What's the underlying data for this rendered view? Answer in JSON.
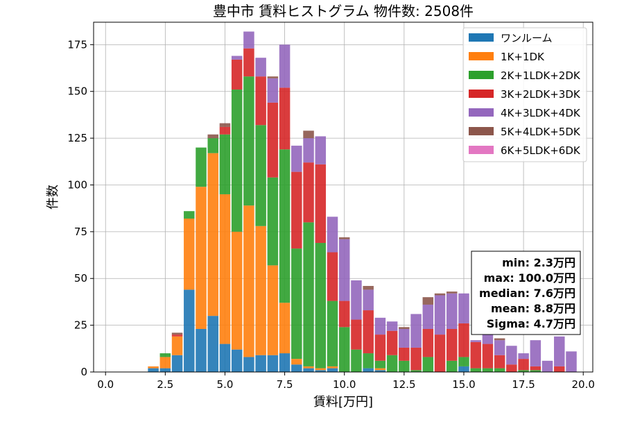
{
  "chart_data": {
    "type": "bar",
    "stacked": true,
    "title": "豊中市 賃料ヒストグラム  物件数: 2508件",
    "xlabel": "賃料[万円]",
    "ylabel": "件数",
    "xlim": [
      -0.5,
      20.4
    ],
    "ylim": [
      0,
      187
    ],
    "xticks": [
      "0.0",
      "2.5",
      "5.0",
      "7.5",
      "10.0",
      "12.5",
      "15.0",
      "17.5",
      "20.0"
    ],
    "yticks": [
      "0",
      "25",
      "50",
      "75",
      "100",
      "125",
      "150",
      "175"
    ],
    "grid": true,
    "legend_position": "top-right",
    "bin_width": 0.5,
    "x": [
      2.0,
      2.5,
      3.0,
      3.5,
      4.0,
      4.5,
      5.0,
      5.5,
      6.0,
      6.5,
      7.0,
      7.5,
      8.0,
      8.5,
      9.0,
      9.5,
      10.0,
      10.5,
      11.0,
      11.5,
      12.0,
      12.5,
      13.0,
      13.5,
      14.0,
      14.5,
      15.0,
      15.5,
      16.0,
      16.5,
      17.0,
      17.5,
      18.0,
      18.5,
      19.0,
      19.5
    ],
    "series": [
      {
        "name": "ワンルーム",
        "color": "#1f77b4",
        "values": [
          2,
          2,
          9,
          44,
          23,
          30,
          15,
          12,
          8,
          9,
          9,
          10,
          4,
          2,
          1,
          2,
          0,
          0,
          2,
          1,
          0,
          0,
          0,
          0,
          0,
          0,
          3,
          0,
          0,
          0,
          0,
          0,
          0,
          0,
          0,
          0
        ]
      },
      {
        "name": "1K+1DK",
        "color": "#ff7f0e",
        "values": [
          1,
          6,
          10,
          38,
          76,
          87,
          80,
          63,
          81,
          69,
          48,
          27,
          3,
          1,
          1,
          1,
          0,
          0,
          0,
          1,
          0,
          0,
          0,
          0,
          0,
          0,
          0,
          0,
          0,
          0,
          0,
          0,
          0,
          0,
          0,
          0
        ]
      },
      {
        "name": "2K+1LDK+2DK",
        "color": "#2ca02c",
        "values": [
          0,
          2,
          0,
          4,
          21,
          8,
          32,
          76,
          69,
          54,
          47,
          82,
          59,
          77,
          67,
          35,
          24,
          12,
          8,
          4,
          9,
          6,
          1,
          8,
          0,
          6,
          5,
          2,
          2,
          2,
          0,
          1,
          1,
          0,
          0,
          0
        ]
      },
      {
        "name": "3K+2LDK+3DK",
        "color": "#d62728",
        "values": [
          0,
          0,
          1,
          0,
          0,
          0,
          4,
          16,
          15,
          26,
          40,
          33,
          41,
          32,
          42,
          26,
          14,
          16,
          23,
          14,
          13,
          7,
          12,
          15,
          20,
          17,
          18,
          14,
          13,
          7,
          4,
          6,
          2,
          0,
          3,
          0
        ]
      },
      {
        "name": "4K+3LDK+4DK",
        "color": "#9467bd",
        "values": [
          0,
          0,
          0,
          0,
          0,
          0,
          0,
          2,
          9,
          10,
          13,
          23,
          14,
          13,
          15,
          19,
          33,
          21,
          11,
          9,
          5,
          10,
          18,
          13,
          21,
          19,
          16,
          1,
          5,
          8,
          10,
          3,
          14,
          6,
          16,
          11
        ]
      },
      {
        "name": "5K+4LDK+5DK",
        "color": "#8c564b",
        "values": [
          0,
          0,
          1,
          0,
          0,
          2,
          2,
          0,
          0,
          0,
          1,
          0,
          0,
          4,
          0,
          0,
          1,
          0,
          2,
          0,
          0,
          1,
          0,
          4,
          1,
          1,
          0,
          0,
          1,
          1,
          0,
          0,
          0,
          0,
          0,
          0
        ]
      },
      {
        "name": "6K+5LDK+6DK",
        "color": "#e377c2",
        "values": [
          0,
          0,
          0,
          0,
          0,
          0,
          0,
          0,
          0,
          0,
          0,
          0,
          0,
          0,
          0,
          0,
          0,
          0,
          0,
          0,
          0,
          0,
          0,
          0,
          0,
          0,
          0,
          0,
          0,
          0,
          0,
          0,
          0,
          0,
          0,
          0
        ]
      }
    ],
    "stats_box": [
      "min: 2.3万円",
      "max: 100.0万円",
      "median: 7.6万円",
      "mean: 8.8万円",
      "Sigma: 4.7万円"
    ]
  }
}
